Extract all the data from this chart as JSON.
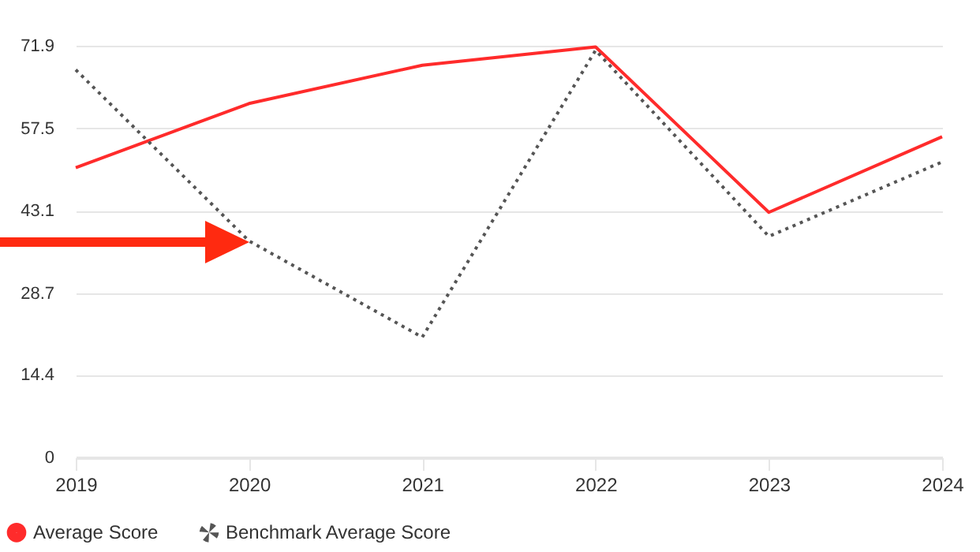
{
  "chart_data": {
    "type": "line",
    "categories": [
      "2019",
      "2020",
      "2021",
      "2022",
      "2023",
      "2024"
    ],
    "series": [
      {
        "name": "Average Score",
        "color": "#ff2b2b",
        "line_style": "solid",
        "values": [
          50.6,
          61.8,
          68.5,
          71.7,
          42.8,
          56.0
        ]
      },
      {
        "name": "Benchmark Average Score",
        "color": "#555555",
        "line_style": "dotted",
        "values": [
          67.7,
          37.8,
          21.0,
          71.1,
          38.6,
          51.6
        ]
      }
    ],
    "ylim": [
      0,
      71.9
    ],
    "yticks": [
      0,
      14.4,
      28.7,
      43.1,
      57.5,
      71.9
    ],
    "grid": "y",
    "legend": "bottom",
    "marker": "none"
  }
}
